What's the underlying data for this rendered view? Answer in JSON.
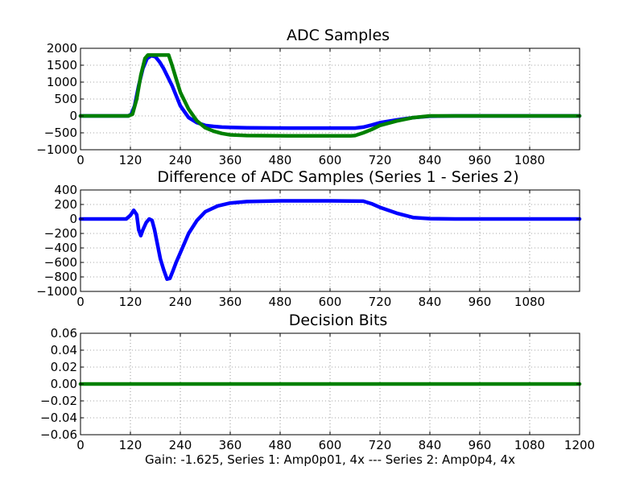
{
  "figure": {
    "caption": "Gain: -1.625, Series 1: Amp0p01, 4x --- Series 2: Amp0p4, 4x"
  },
  "chart_data": [
    {
      "type": "line",
      "title": "ADC Samples",
      "xlim": [
        0,
        1200
      ],
      "ylim": [
        -1000,
        2000
      ],
      "grid": true,
      "x_ticks": [
        0,
        120,
        240,
        360,
        480,
        600,
        720,
        840,
        960,
        1080
      ],
      "y_ticks": [
        -1000,
        -500,
        0,
        500,
        1000,
        1500,
        2000
      ],
      "series": [
        {
          "color": "#0000ff",
          "x": [
            0,
            105,
            115,
            122,
            130,
            140,
            150,
            160,
            170,
            180,
            190,
            200,
            220,
            240,
            260,
            280,
            300,
            320,
            340,
            360,
            400,
            500,
            600,
            660,
            680,
            700,
            720,
            760,
            800,
            840,
            900,
            1000,
            1100,
            1200
          ],
          "y": [
            0,
            0,
            0,
            50,
            300,
            900,
            1400,
            1700,
            1780,
            1750,
            1600,
            1400,
            900,
            300,
            -50,
            -200,
            -280,
            -310,
            -330,
            -340,
            -350,
            -360,
            -360,
            -360,
            -330,
            -270,
            -200,
            -120,
            -50,
            -10,
            0,
            0,
            0,
            0
          ]
        },
        {
          "color": "#008000",
          "x": [
            0,
            105,
            115,
            125,
            135,
            145,
            155,
            162,
            170,
            200,
            212,
            220,
            230,
            240,
            260,
            280,
            300,
            320,
            340,
            360,
            400,
            500,
            600,
            650,
            660,
            680,
            700,
            720,
            760,
            800,
            840,
            900,
            1000,
            1100,
            1200
          ],
          "y": [
            0,
            0,
            0,
            50,
            500,
            1200,
            1700,
            1800,
            1800,
            1800,
            1800,
            1500,
            1100,
            700,
            200,
            -150,
            -350,
            -450,
            -520,
            -560,
            -580,
            -590,
            -590,
            -590,
            -580,
            -500,
            -400,
            -280,
            -150,
            -50,
            0,
            0,
            0,
            0,
            0
          ]
        }
      ]
    },
    {
      "type": "line",
      "title": "Difference of ADC Samples (Series 1 - Series 2)",
      "xlim": [
        0,
        1200
      ],
      "ylim": [
        -1000,
        400
      ],
      "grid": true,
      "x_ticks": [
        0,
        120,
        240,
        360,
        480,
        600,
        720,
        840,
        960,
        1080
      ],
      "y_ticks": [
        -1000,
        -800,
        -600,
        -400,
        -200,
        0,
        200,
        400
      ],
      "series": [
        {
          "color": "#0000ff",
          "x": [
            0,
            110,
            120,
            128,
            135,
            140,
            145,
            150,
            158,
            165,
            172,
            178,
            185,
            192,
            200,
            208,
            215,
            222,
            230,
            245,
            260,
            280,
            300,
            330,
            360,
            400,
            480,
            600,
            680,
            700,
            720,
            760,
            800,
            840,
            900,
            1000,
            1100,
            1200
          ],
          "y": [
            0,
            0,
            50,
            120,
            60,
            -150,
            -230,
            -150,
            -50,
            0,
            -20,
            -150,
            -350,
            -550,
            -700,
            -830,
            -820,
            -720,
            -600,
            -400,
            -200,
            -20,
            100,
            180,
            220,
            240,
            250,
            250,
            245,
            210,
            160,
            80,
            20,
            5,
            0,
            0,
            0,
            0
          ]
        }
      ]
    },
    {
      "type": "line",
      "title": "Decision Bits",
      "xlim": [
        0,
        1200
      ],
      "ylim": [
        -0.06,
        0.06
      ],
      "grid": true,
      "x_ticks": [
        0,
        120,
        240,
        360,
        480,
        600,
        720,
        840,
        960,
        1080,
        1200
      ],
      "y_ticks": [
        -0.06,
        -0.04,
        -0.02,
        0.0,
        0.02,
        0.04,
        0.06
      ],
      "series": [
        {
          "color": "#008000",
          "x": [
            0,
            1200
          ],
          "y": [
            0,
            0
          ]
        }
      ]
    }
  ]
}
